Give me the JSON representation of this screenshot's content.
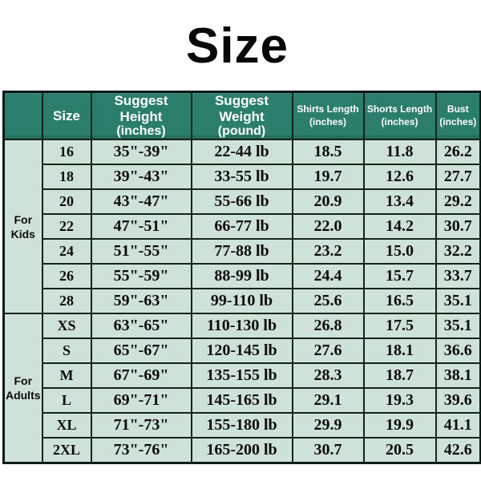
{
  "title": "Size",
  "colors": {
    "header_bg": "#2c7e6c",
    "cell_bg": "#cfe2d9",
    "border": "#15231f",
    "header_text": "#ffffff",
    "body_text": "#0c0c0c",
    "page_bg": "#ffffff"
  },
  "table": {
    "columns": [
      {
        "title": "",
        "sub": ""
      },
      {
        "title": "Size",
        "sub": ""
      },
      {
        "title": "Suggest Height",
        "sub": "(inches)"
      },
      {
        "title": "Suggest Weight",
        "sub": "(pound)"
      },
      {
        "title": "Shirts Length",
        "sub": "(inches)"
      },
      {
        "title": "Shorts Length",
        "sub": "(inches)"
      },
      {
        "title": "Bust",
        "sub": "(inches)"
      }
    ],
    "groups": [
      {
        "label": "For Kids",
        "rows": [
          {
            "size": "16",
            "height": "35\"-39\"",
            "weight": "22-44 lb",
            "shirts": "18.5",
            "shorts": "11.8",
            "bust": "26.2"
          },
          {
            "size": "18",
            "height": "39\"-43\"",
            "weight": "33-55 lb",
            "shirts": "19.7",
            "shorts": "12.6",
            "bust": "27.7"
          },
          {
            "size": "20",
            "height": "43\"-47\"",
            "weight": "55-66 lb",
            "shirts": "20.9",
            "shorts": "13.4",
            "bust": "29.2"
          },
          {
            "size": "22",
            "height": "47\"-51\"",
            "weight": "66-77 lb",
            "shirts": "22.0",
            "shorts": "14.2",
            "bust": "30.7"
          },
          {
            "size": "24",
            "height": "51\"-55\"",
            "weight": "77-88 lb",
            "shirts": "23.2",
            "shorts": "15.0",
            "bust": "32.2"
          },
          {
            "size": "26",
            "height": "55\"-59\"",
            "weight": "88-99 lb",
            "shirts": "24.4",
            "shorts": "15.7",
            "bust": "33.7"
          },
          {
            "size": "28",
            "height": "59\"-63\"",
            "weight": "99-110 lb",
            "shirts": "25.6",
            "shorts": "16.5",
            "bust": "35.1"
          }
        ]
      },
      {
        "label": "For Adults",
        "rows": [
          {
            "size": "XS",
            "height": "63\"-65\"",
            "weight": "110-130 lb",
            "shirts": "26.8",
            "shorts": "17.5",
            "bust": "35.1"
          },
          {
            "size": "S",
            "height": "65\"-67\"",
            "weight": "120-145 lb",
            "shirts": "27.6",
            "shorts": "18.1",
            "bust": "36.6"
          },
          {
            "size": "M",
            "height": "67\"-69\"",
            "weight": "135-155 lb",
            "shirts": "28.3",
            "shorts": "18.7",
            "bust": "38.1"
          },
          {
            "size": "L",
            "height": "69\"-71\"",
            "weight": "145-165 lb",
            "shirts": "29.1",
            "shorts": "19.3",
            "bust": "39.6"
          },
          {
            "size": "XL",
            "height": "71\"-73\"",
            "weight": "155-180 lb",
            "shirts": "29.9",
            "shorts": "19.9",
            "bust": "41.1"
          },
          {
            "size": "2XL",
            "height": "73\"-76\"",
            "weight": "165-200 lb",
            "shirts": "30.7",
            "shorts": "20.5",
            "bust": "42.6"
          }
        ]
      }
    ]
  },
  "chart_data": {
    "type": "table",
    "title": "Size",
    "columns": [
      "",
      "Size",
      "Suggest Height (inches)",
      "Suggest Weight (pound)",
      "Shirts Length (inches)",
      "Shorts Length (inches)",
      "Bust (inches)"
    ],
    "rows": [
      [
        "For Kids",
        "16",
        "35\"-39\"",
        "22-44 lb",
        "18.5",
        "11.8",
        "26.2"
      ],
      [
        "For Kids",
        "18",
        "39\"-43\"",
        "33-55 lb",
        "19.7",
        "12.6",
        "27.7"
      ],
      [
        "For Kids",
        "20",
        "43\"-47\"",
        "55-66 lb",
        "20.9",
        "13.4",
        "29.2"
      ],
      [
        "For Kids",
        "22",
        "47\"-51\"",
        "66-77 lb",
        "22.0",
        "14.2",
        "30.7"
      ],
      [
        "For Kids",
        "24",
        "51\"-55\"",
        "77-88 lb",
        "23.2",
        "15.0",
        "32.2"
      ],
      [
        "For Kids",
        "26",
        "55\"-59\"",
        "88-99 lb",
        "24.4",
        "15.7",
        "33.7"
      ],
      [
        "For Kids",
        "28",
        "59\"-63\"",
        "99-110 lb",
        "25.6",
        "16.5",
        "35.1"
      ],
      [
        "For Adults",
        "XS",
        "63\"-65\"",
        "110-130 lb",
        "26.8",
        "17.5",
        "35.1"
      ],
      [
        "For Adults",
        "S",
        "65\"-67\"",
        "120-145 lb",
        "27.6",
        "18.1",
        "36.6"
      ],
      [
        "For Adults",
        "M",
        "67\"-69\"",
        "135-155 lb",
        "28.3",
        "18.7",
        "38.1"
      ],
      [
        "For Adults",
        "L",
        "69\"-71\"",
        "145-165 lb",
        "29.1",
        "19.3",
        "39.6"
      ],
      [
        "For Adults",
        "XL",
        "71\"-73\"",
        "155-180 lb",
        "29.9",
        "19.9",
        "41.1"
      ],
      [
        "For Adults",
        "2XL",
        "73\"-76\"",
        "165-200 lb",
        "30.7",
        "20.5",
        "42.6"
      ]
    ]
  }
}
